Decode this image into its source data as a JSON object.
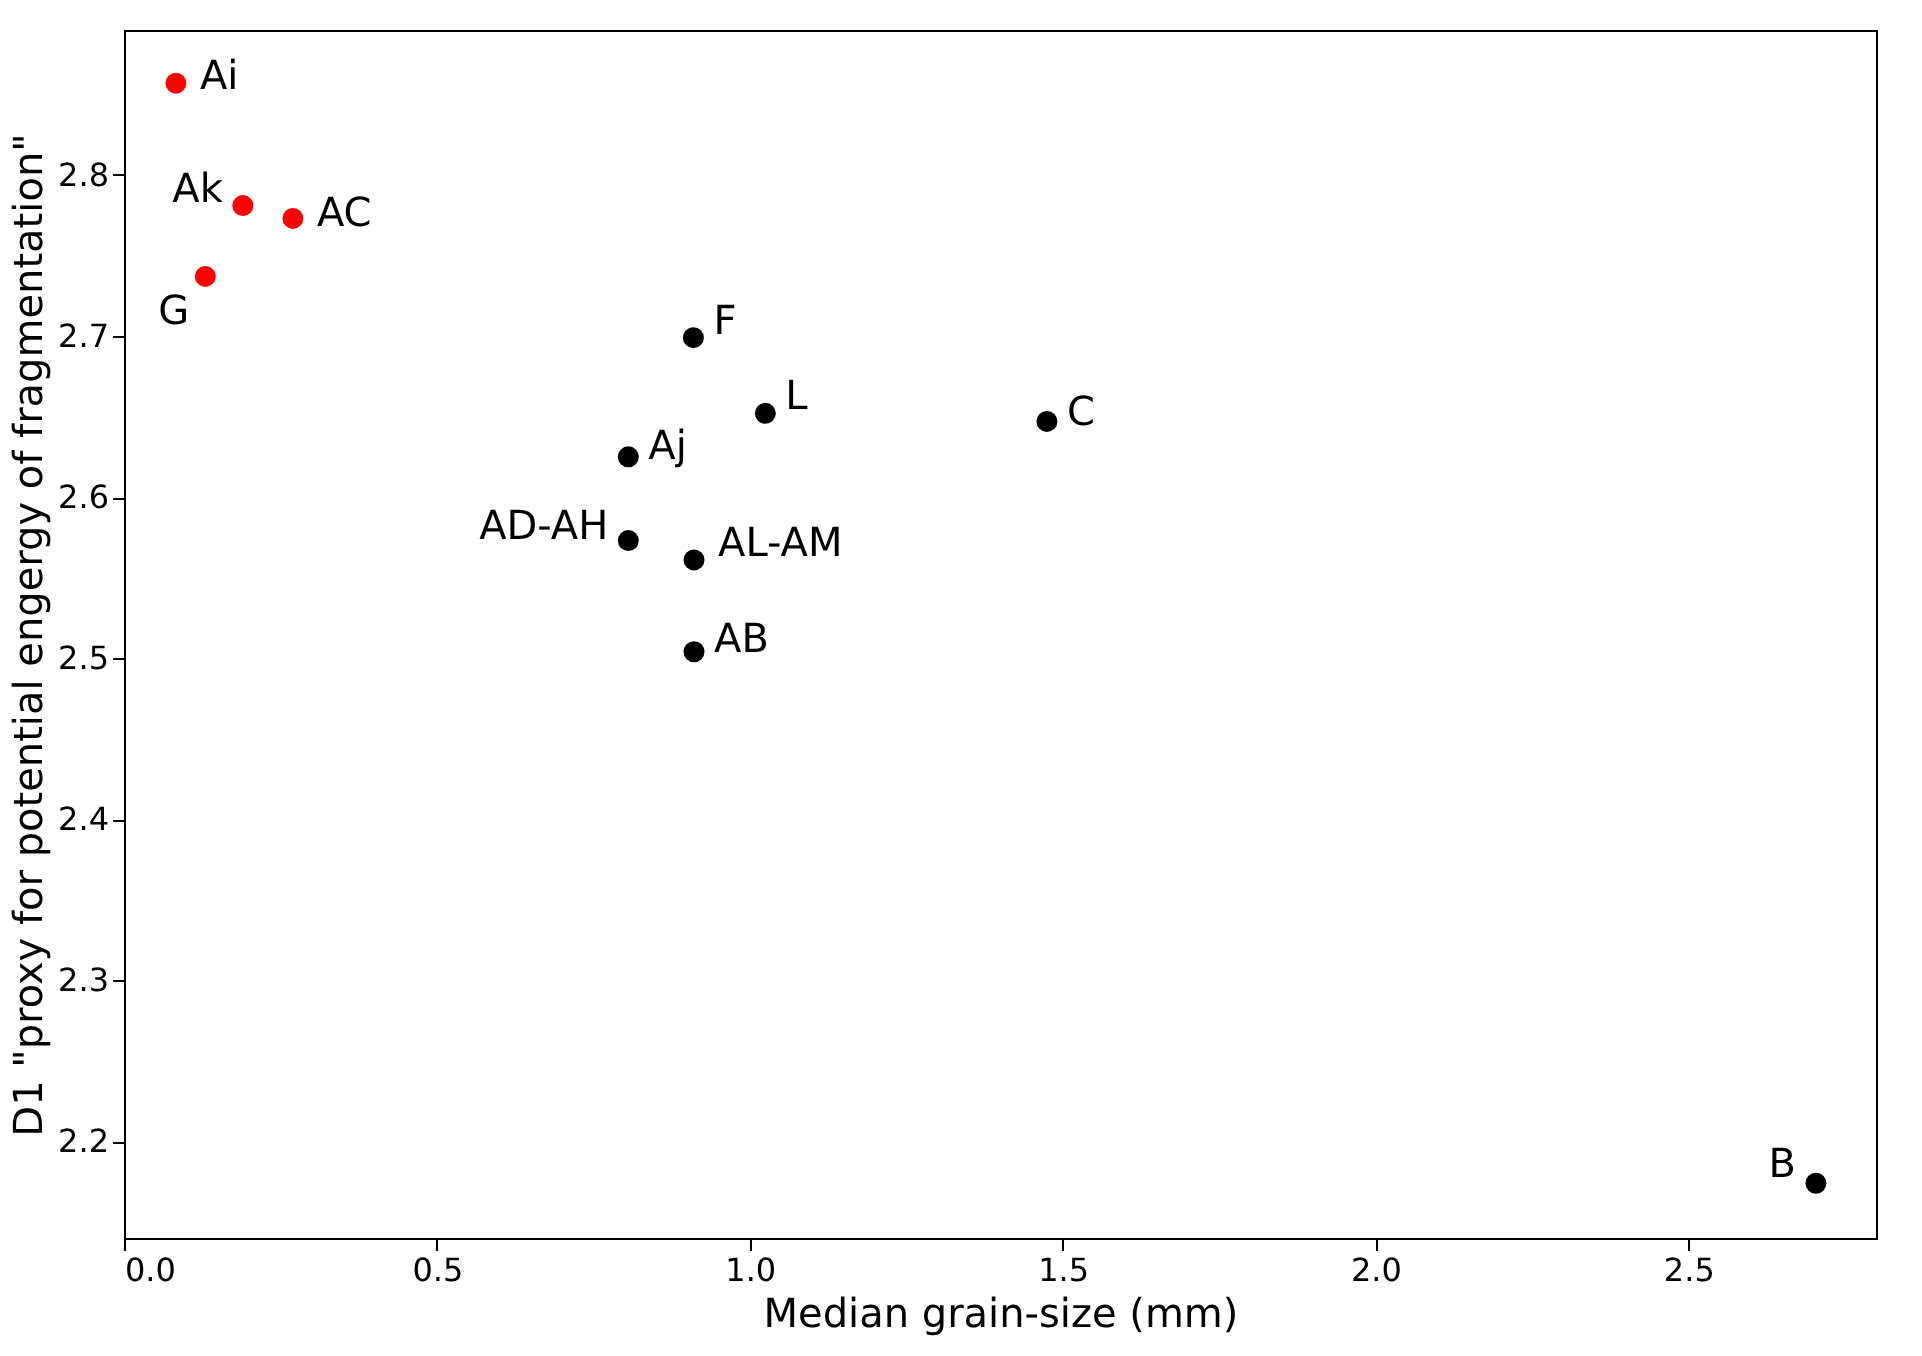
{
  "chart_data": {
    "type": "scatter",
    "xlabel": "Median grain-size (mm)",
    "ylabel": "D1 \"proxy for potential engergy of fragmentation\"",
    "series": [
      {
        "color": "#ff0000",
        "x": [
          0.083,
          0.19,
          0.27,
          0.13
        ],
        "values": [
          2.857,
          2.781,
          2.773,
          2.737
        ]
      },
      {
        "color": "#000000",
        "x": [
          0.91,
          1.025,
          1.475,
          0.806,
          0.806,
          0.911,
          0.911,
          2.704
        ],
        "values": [
          2.699,
          2.652,
          2.647,
          2.625,
          2.573,
          2.561,
          2.504,
          2.174
        ]
      }
    ],
    "annotations": [
      {
        "text": "Ai",
        "x": 0.083,
        "y": 2.857
      },
      {
        "text": "Ak",
        "x": 0.19,
        "y": 2.781
      },
      {
        "text": "AC",
        "x": 0.27,
        "y": 2.773
      },
      {
        "text": "G",
        "x": 0.13,
        "y": 2.737
      },
      {
        "text": "F",
        "x": 0.91,
        "y": 2.699
      },
      {
        "text": "L",
        "x": 1.025,
        "y": 2.652
      },
      {
        "text": "C",
        "x": 1.475,
        "y": 2.647
      },
      {
        "text": "Aj",
        "x": 0.806,
        "y": 2.625
      },
      {
        "text": "AD-AH",
        "x": 0.806,
        "y": 2.573
      },
      {
        "text": "AL-AM",
        "x": 0.911,
        "y": 2.561
      },
      {
        "text": "AB",
        "x": 0.911,
        "y": 2.504
      },
      {
        "text": "B",
        "x": 2.704,
        "y": 2.174
      }
    ],
    "xlim": [
      0,
      2.8
    ],
    "ylim": [
      2.14,
      2.89
    ],
    "xticks": [
      {
        "value": 0,
        "label": "0.0"
      },
      0.5,
      {
        "value": 1,
        "label": "1.0"
      },
      1.5,
      {
        "value": 2,
        "label": "2.0"
      },
      2.5
    ],
    "yticks": [
      2.2,
      2.3,
      2.4,
      2.5,
      2.6,
      2.7,
      2.8
    ],
    "grid": false,
    "marker": "circle"
  }
}
